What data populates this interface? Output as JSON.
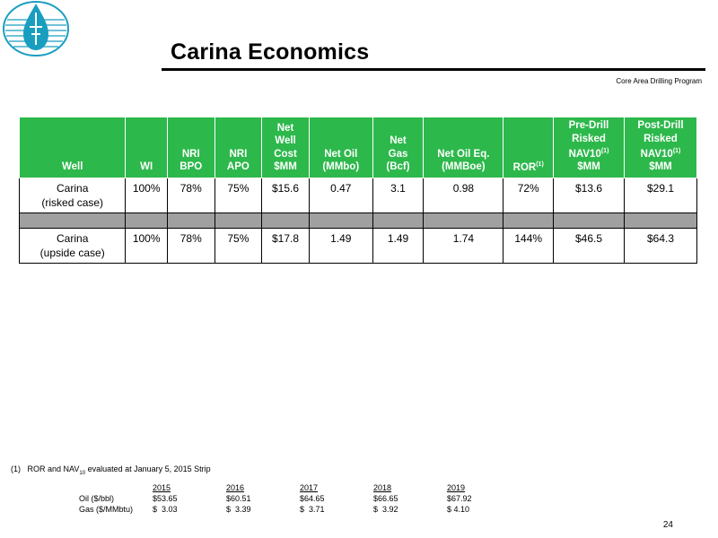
{
  "title": "Carina Economics",
  "subtitle": "Core Area Drilling Program",
  "colors": {
    "header_green": "#2db84b",
    "spacer_gray": "#a0a0a0",
    "logo_teal": "#1a9ec0"
  },
  "table": {
    "headers": [
      {
        "lines": [
          "Well"
        ]
      },
      {
        "lines": [
          "WI"
        ]
      },
      {
        "lines": [
          "NRI",
          "BPO"
        ]
      },
      {
        "lines": [
          "NRI",
          "APO"
        ]
      },
      {
        "lines": [
          "Net",
          "Well",
          "Cost",
          "$MM"
        ]
      },
      {
        "lines": [
          "Net Oil",
          "(MMbo)"
        ]
      },
      {
        "lines": [
          "Net",
          "Gas",
          "(Bcf)"
        ]
      },
      {
        "lines": [
          "Net Oil Eq.",
          "(MMBoe)"
        ]
      },
      {
        "lines": [
          "ROR"
        ],
        "sup": "(1)"
      },
      {
        "lines": [
          "Pre-Drill",
          "Risked",
          "NAV10",
          "$MM"
        ],
        "sup_line": 2,
        "sup": "(1)"
      },
      {
        "lines": [
          "Post-Drill",
          "Risked",
          "NAV10",
          "$MM"
        ],
        "sup_line": 2,
        "sup": "(1)"
      }
    ],
    "rows": [
      {
        "well": [
          "Carina",
          "(risked case)"
        ],
        "cells": [
          "100%",
          "78%",
          "75%",
          "$15.6",
          "0.47",
          "3.1",
          "0.98",
          "72%",
          "$13.6",
          "$29.1"
        ]
      },
      {
        "well": [
          "Carina",
          "(upside case)"
        ],
        "cells": [
          "100%",
          "78%",
          "75%",
          "$17.8",
          "1.49",
          "1.49",
          "1.74",
          "144%",
          "$46.5",
          "$64.3"
        ]
      }
    ]
  },
  "footnote": {
    "marker": "(1)",
    "text_before": "ROR and NAV",
    "sub": "10",
    "text_after": " evaluated at January 5, 2015 Strip"
  },
  "price_strip": {
    "years": [
      "2015",
      "2016",
      "2017",
      "2018",
      "2019"
    ],
    "rows": [
      {
        "label": "Oil ($/bbl)",
        "values": [
          "$53.65",
          "$60.51",
          "$64.65",
          "$66.65",
          "$67.92"
        ]
      },
      {
        "label": "Gas ($/MMbtu)",
        "values": [
          "$  3.03",
          "$  3.39",
          "$  3.71",
          "$  3.92",
          "$ 4.10"
        ]
      }
    ]
  },
  "page_number": "24",
  "logo_icon": "teardrop-emblem-icon"
}
